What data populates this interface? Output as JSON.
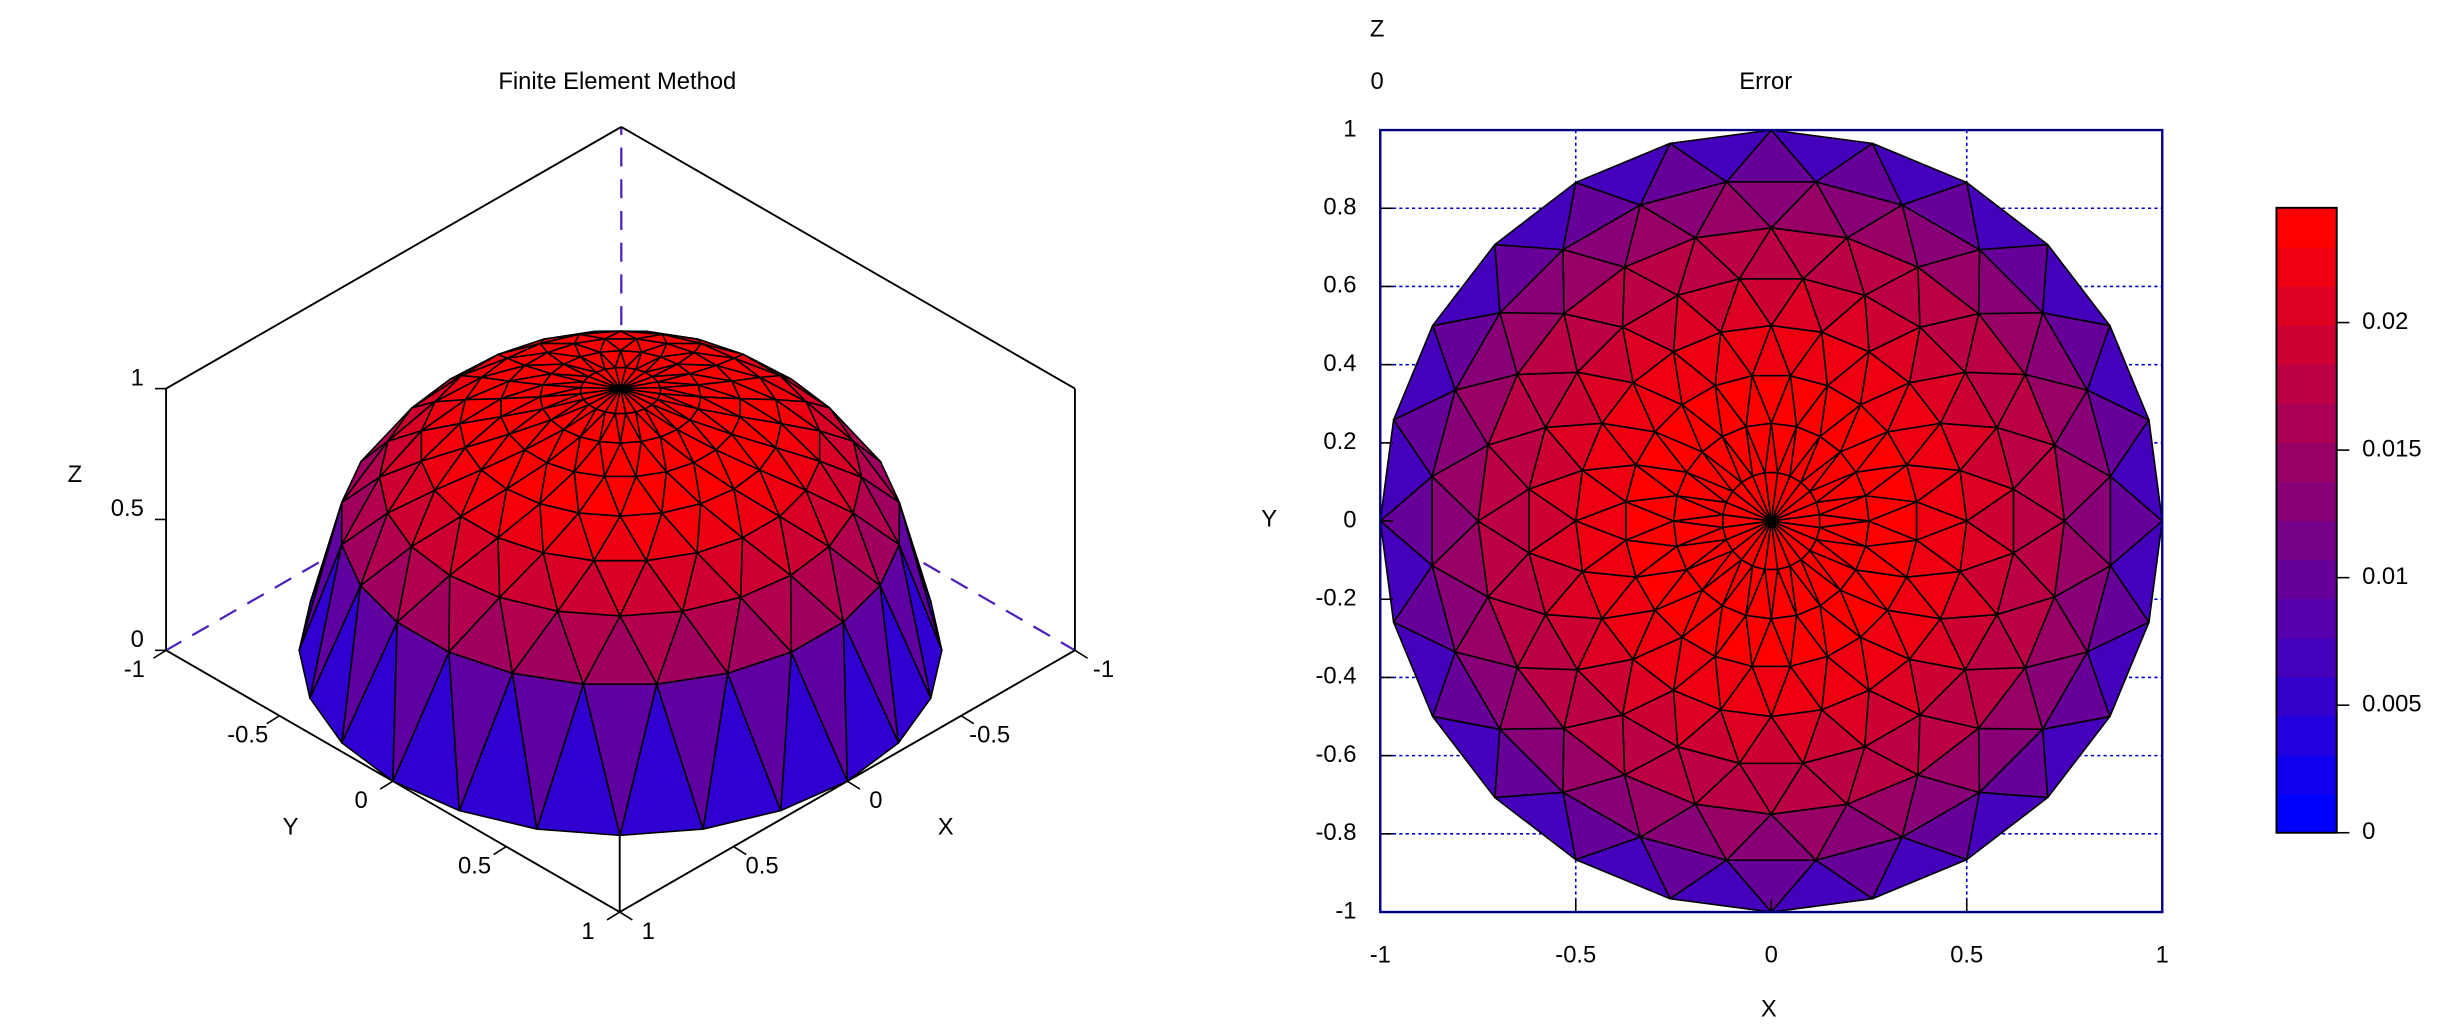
{
  "chart_data": [
    {
      "type": "surface3d",
      "title": "Finite Element Method",
      "xlabel": "X",
      "ylabel": "Y",
      "zlabel": "Z",
      "xlim": [
        -1,
        1
      ],
      "ylim": [
        -1,
        1
      ],
      "zlim": [
        0,
        1
      ],
      "xticks": [
        -1,
        -0.5,
        0,
        0.5,
        1
      ],
      "yticks": [
        -1,
        -0.5,
        0,
        0.5,
        1
      ],
      "zticks": [
        0,
        0.5,
        1
      ],
      "colormap": [
        "#0000ff",
        "#ff0000"
      ],
      "edge_color": "#000000",
      "box_color": "#000000",
      "hidden_axis_color": "#4b1fb8"
    },
    {
      "type": "tripcolor",
      "title": "Error",
      "xlabel": "X",
      "ylabel": "Y",
      "zlabel": "Z",
      "zticks": [
        0
      ],
      "xlim": [
        -1,
        1
      ],
      "ylim": [
        -1,
        1
      ],
      "xticks": [
        -1,
        -0.5,
        0,
        0.5,
        1
      ],
      "yticks": [
        -1,
        -0.8,
        -0.6,
        -0.4,
        -0.2,
        0,
        0.2,
        0.4,
        0.6,
        0.8,
        1
      ],
      "grid": true,
      "grid_color": "#0000cc",
      "clim": [
        0,
        0.0245
      ],
      "cticks": [
        0,
        0.005,
        0.01,
        0.015,
        0.02
      ],
      "levels": 16,
      "colormap": [
        "#0000ff",
        "#ff0000"
      ],
      "edge_color": "#000000"
    }
  ]
}
